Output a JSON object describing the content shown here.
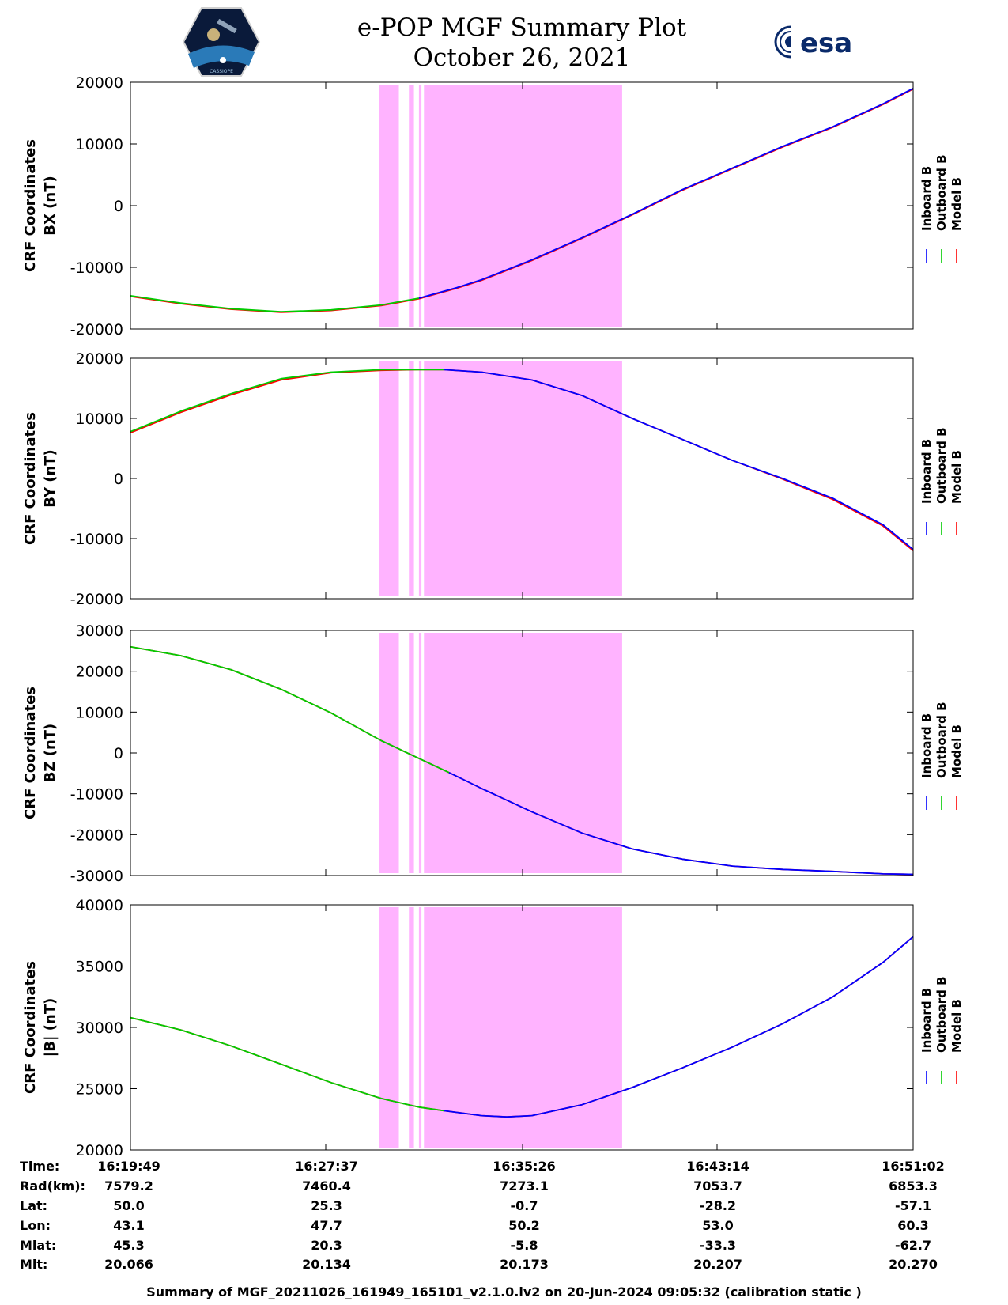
{
  "header": {
    "title_line1": "e-POP MGF Summary Plot",
    "title_line2": "October 26, 2021",
    "left_logo_text": "CASSIOPE",
    "right_logo_text": "esa"
  },
  "colors": {
    "inboard": "#0000ff",
    "outboard": "#00cc00",
    "model": "#ff0000",
    "shade": "#ffb3ff"
  },
  "legend": [
    "Inboard B",
    "Outboard B",
    "Model B"
  ],
  "time_ticks": [
    "16:19:49",
    "16:27:37",
    "16:35:26",
    "16:43:14",
    "16:51:02"
  ],
  "shaded_regions_minutes": [
    [
      9.9,
      10.7
    ],
    [
      11.1,
      11.3
    ],
    [
      11.5,
      11.6
    ],
    [
      11.7,
      19.6
    ]
  ],
  "chart_data": [
    {
      "type": "line",
      "ylabel_line1": "CRF Coordinates",
      "ylabel_line2": "BX (nT)",
      "ylim": [
        -20000,
        20000
      ],
      "yticks": [
        20000,
        10000,
        0,
        -10000,
        -20000
      ],
      "xlim_minutes": [
        0,
        31.2
      ],
      "x_minutes": [
        0,
        2,
        4,
        6,
        8,
        10,
        11.5,
        13,
        14,
        16,
        18,
        20,
        22,
        24,
        26,
        28,
        30,
        31.2
      ],
      "inboard": [
        null,
        null,
        null,
        null,
        null,
        null,
        -15000,
        -13300,
        -12000,
        -8800,
        -5200,
        -1400,
        2600,
        6100,
        9600,
        12800,
        16500,
        19000
      ],
      "outboard": [
        -14600,
        -15800,
        -16700,
        -17200,
        -16900,
        -16100,
        -15000,
        null,
        null,
        null,
        null,
        null,
        null,
        null,
        null,
        null,
        null,
        null
      ],
      "model": [
        -14700,
        -15900,
        -16800,
        -17300,
        -17000,
        -16200,
        -15100,
        -13400,
        -12100,
        -8900,
        -5300,
        -1500,
        2500,
        6000,
        9500,
        12700,
        16400,
        18900
      ]
    },
    {
      "type": "line",
      "ylabel_line1": "CRF Coordinates",
      "ylabel_line2": "BY (nT)",
      "ylim": [
        -20000,
        20000
      ],
      "yticks": [
        20000,
        10000,
        0,
        -10000,
        -20000
      ],
      "xlim_minutes": [
        0,
        31.2
      ],
      "x_minutes": [
        0,
        2,
        4,
        6,
        8,
        10,
        11.5,
        12.5,
        14,
        16,
        18,
        20,
        22,
        24,
        26,
        28,
        30,
        31.2
      ],
      "inboard": [
        null,
        null,
        null,
        null,
        null,
        null,
        null,
        18100,
        17700,
        16400,
        13800,
        10000,
        6500,
        3000,
        0,
        -3300,
        -7700,
        -11800
      ],
      "outboard": [
        7800,
        11200,
        14100,
        16600,
        17700,
        18100,
        18100,
        18100,
        null,
        null,
        null,
        null,
        null,
        null,
        null,
        null,
        null,
        null
      ],
      "model": [
        7600,
        11000,
        13900,
        16400,
        17600,
        18000,
        18100,
        18100,
        17700,
        16400,
        13800,
        10000,
        6500,
        3000,
        -100,
        -3500,
        -7900,
        -12000
      ]
    },
    {
      "type": "line",
      "ylabel_line1": "CRF Coordinates",
      "ylabel_line2": "BZ (nT)",
      "ylim": [
        -30000,
        30000
      ],
      "yticks": [
        30000,
        20000,
        10000,
        0,
        -10000,
        -20000,
        -30000
      ],
      "xlim_minutes": [
        0,
        31.2
      ],
      "x_minutes": [
        0,
        2,
        4,
        6,
        8,
        10,
        12.7,
        14,
        16,
        18,
        20,
        22,
        24,
        26,
        28,
        30,
        31.2
      ],
      "inboard": [
        null,
        null,
        null,
        null,
        null,
        null,
        -4800,
        -8700,
        -14400,
        -19600,
        -23500,
        -26000,
        -27700,
        -28500,
        -29000,
        -29600,
        -29700
      ],
      "outboard": [
        26000,
        23800,
        20400,
        15600,
        9800,
        3000,
        -4800,
        null,
        null,
        null,
        null,
        null,
        null,
        null,
        null,
        null,
        null
      ],
      "model": [
        26000,
        23800,
        20400,
        15600,
        9800,
        3000,
        -4800,
        -8700,
        -14400,
        -19600,
        -23500,
        -26000,
        -27700,
        -28500,
        -29000,
        -29600,
        -29700
      ]
    },
    {
      "type": "line",
      "ylabel_line1": "CRF Coordinates",
      "ylabel_line2": "|B| (nT)",
      "ylim": [
        20000,
        40000
      ],
      "yticks": [
        40000,
        35000,
        30000,
        25000,
        20000
      ],
      "xlim_minutes": [
        0,
        31.2
      ],
      "x_minutes": [
        0,
        2,
        4,
        6,
        8,
        10,
        11.5,
        12.5,
        14,
        15,
        16,
        18,
        20,
        22,
        24,
        26,
        28,
        30,
        31.2
      ],
      "inboard": [
        null,
        null,
        null,
        null,
        null,
        null,
        null,
        23200,
        22800,
        22700,
        22800,
        23700,
        25100,
        26700,
        28400,
        30300,
        32500,
        35300,
        37400
      ],
      "outboard": [
        30800,
        29800,
        28500,
        27000,
        25500,
        24200,
        23500,
        23200,
        null,
        null,
        null,
        null,
        null,
        null,
        null,
        null,
        null,
        null,
        null
      ],
      "model": [
        30800,
        29800,
        28500,
        27000,
        25500,
        24200,
        23500,
        23200,
        22800,
        22700,
        22800,
        23700,
        25100,
        26700,
        28400,
        30300,
        32500,
        35300,
        37400
      ]
    }
  ],
  "info": {
    "labels": [
      "Time:",
      "Rad(km):",
      "Lat:",
      "Lon:",
      "Mlat:",
      "Mlt:"
    ],
    "columns": [
      [
        "16:19:49",
        "7579.2",
        "50.0",
        "43.1",
        "45.3",
        "20.066"
      ],
      [
        "16:27:37",
        "7460.4",
        "25.3",
        "47.7",
        "20.3",
        "20.134"
      ],
      [
        "16:35:26",
        "7273.1",
        "-0.7",
        "50.2",
        "-5.8",
        "20.173"
      ],
      [
        "16:43:14",
        "7053.7",
        "-28.2",
        "53.0",
        "-33.3",
        "20.207"
      ],
      [
        "16:51:02",
        "6853.3",
        "-57.1",
        "60.3",
        "-62.7",
        "20.270"
      ]
    ]
  },
  "footer": "Summary of MGF_20211026_161949_165101_v2.1.0.lv2 on 20-Jun-2024 09:05:32 (calibration static )"
}
